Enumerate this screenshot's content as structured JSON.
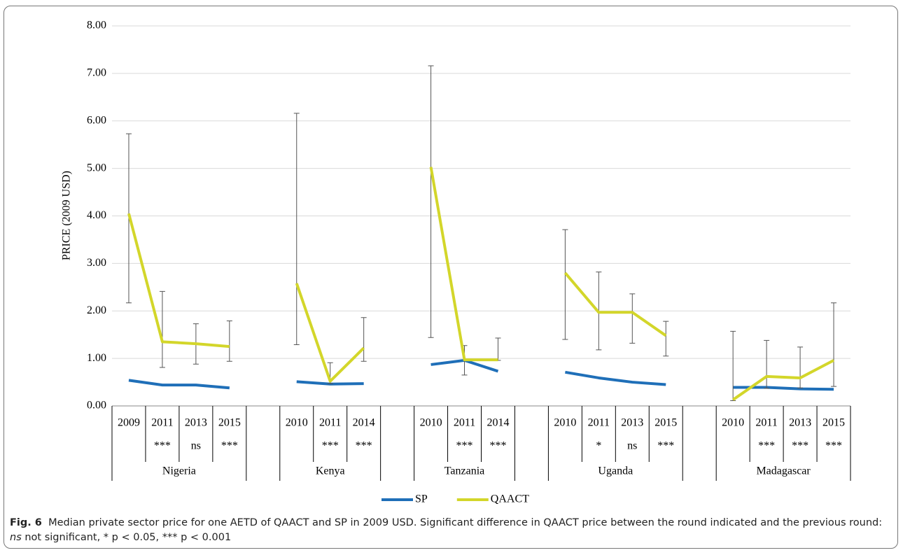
{
  "chart_data": {
    "type": "line",
    "ylabel": "PRICE (2009 USD)",
    "ylim": [
      0,
      8
    ],
    "yticks": [
      {
        "value": 0,
        "label": "0.00"
      },
      {
        "value": 1,
        "label": "1.00"
      },
      {
        "value": 2,
        "label": "2.00"
      },
      {
        "value": 3,
        "label": "3.00"
      },
      {
        "value": 4,
        "label": "4.00"
      },
      {
        "value": 5,
        "label": "5.00"
      },
      {
        "value": 6,
        "label": "6.00"
      },
      {
        "value": 7,
        "label": "7.00"
      },
      {
        "value": 8,
        "label": "8.00"
      }
    ],
    "grid": true,
    "categories": [
      "2009",
      "2011",
      "2013",
      "2015",
      null,
      "2010",
      "2011",
      "2014",
      null,
      "2010",
      "2011",
      "2014",
      null,
      "2010",
      "2011",
      "2013",
      "2015",
      null,
      "2010",
      "2011",
      "2013",
      "2015"
    ],
    "significance": [
      null,
      "***",
      "ns",
      "***",
      null,
      null,
      "***",
      "***",
      null,
      null,
      "***",
      "***",
      null,
      null,
      "*",
      "ns",
      "***",
      null,
      null,
      "***",
      "***",
      "***"
    ],
    "group_labels": [
      "Nigeria",
      "Kenya",
      "Tanzania",
      "Uganda",
      "Madagascar"
    ],
    "legend": "bottom",
    "series": [
      {
        "name": "SP",
        "color": "#1f6fb8",
        "values": [
          0.54,
          0.44,
          0.44,
          0.38,
          null,
          0.51,
          0.46,
          0.47,
          null,
          0.87,
          0.96,
          0.73,
          null,
          0.71,
          0.59,
          0.5,
          0.45,
          null,
          0.39,
          0.39,
          0.36,
          0.35
        ]
      },
      {
        "name": "QAACT",
        "color": "#d3d62a",
        "values": [
          4.05,
          1.35,
          1.31,
          1.25,
          null,
          2.58,
          0.52,
          1.22,
          null,
          5.03,
          0.97,
          0.97,
          null,
          2.8,
          1.97,
          1.97,
          1.48,
          null,
          0.13,
          0.62,
          0.59,
          0.96
        ],
        "error_low": [
          2.17,
          0.81,
          0.88,
          0.94,
          null,
          1.29,
          0.47,
          0.94,
          null,
          1.44,
          0.65,
          0.96,
          null,
          1.4,
          1.18,
          1.32,
          1.05,
          null,
          0.11,
          0.37,
          0.38,
          0.41
        ],
        "error_high": [
          5.73,
          2.41,
          1.73,
          1.79,
          null,
          6.16,
          0.91,
          1.86,
          null,
          7.16,
          1.27,
          1.43,
          null,
          3.71,
          2.82,
          2.36,
          1.78,
          null,
          1.57,
          1.38,
          1.24,
          2.17
        ]
      }
    ]
  },
  "caption": {
    "label": "Fig. 6",
    "text": "Median private sector price for one AETD of QAACT and SP in 2009 USD. Significant difference in QAACT price between the round indicated and the previous round: ",
    "emphasis": "ns",
    "text_end": " not significant, * p < 0.05, *** p < 0.001"
  }
}
